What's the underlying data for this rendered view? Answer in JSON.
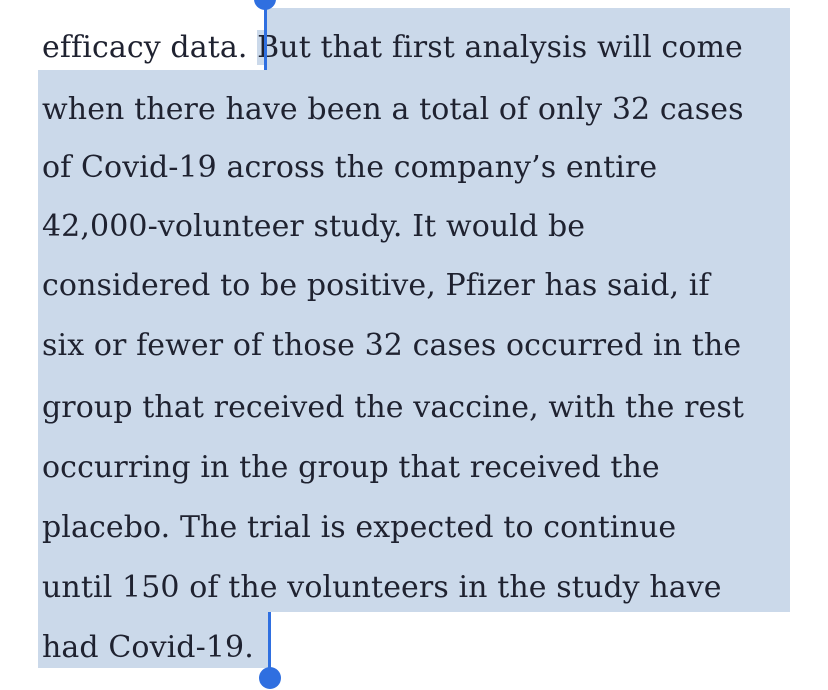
{
  "article": {
    "lines": [
      "",
      "efficacy data. ",
      "But that first analysis will come",
      "when there have been a total of only 32 cases",
      "of Covid-19 across the company’s entire",
      "42,000-volunteer study. It would be",
      "considered to be positive, Pfizer has said, if",
      "six or fewer of those 32 cases occurred in the",
      "group that received the vaccine, with the rest",
      "occurring in the group that received the",
      "placebo. The trial is expected to continue",
      "until 150 of the volunteers in the study have",
      "had Covid-19."
    ]
  },
  "colors": {
    "selection": "#cbd9ea",
    "handle": "#2f6fe0",
    "text": "#1f2230"
  }
}
